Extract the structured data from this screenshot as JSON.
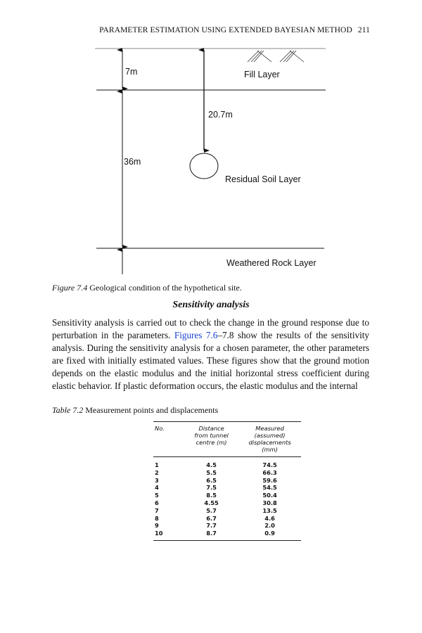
{
  "header": {
    "running_title": "PARAMETER ESTIMATION USING EXTENDED BAYESIAN METHOD",
    "page_number": "211"
  },
  "figure": {
    "labels": {
      "fill_depth": "7m",
      "tunnel_depth": "20.7m",
      "residual_depth": "36m",
      "fill_layer": "Fill Layer",
      "residual_layer": "Residual Soil Layer",
      "rock_layer": "Weathered Rock Layer"
    },
    "caption_label": "Figure 7.4",
    "caption_text": "Geological condition of the hypothetical site."
  },
  "section": {
    "heading": "Sensitivity analysis",
    "para_before_link": "Sensitivity analysis is carried out to check the change in the ground response due to perturbation in the parameters. ",
    "link_text": "Figures 7.6",
    "para_after_link": "–7.8 show the results of the sensitivity analysis. During the sensitivity analysis for a chosen parameter, the other parameters are fixed with initially estimated values. These figures show that the ground motion depends on the elastic modulus and the initial horizontal stress coefficient during elastic behavior. If plastic deformation occurs, the elastic modulus and the internal"
  },
  "table": {
    "caption_label": "Table 7.2",
    "caption_text": "Measurement points and displacements",
    "headers": [
      "No.",
      "Distance from tunnel centre (m)",
      "Measured (assumed) displacements (mm)"
    ],
    "rows": [
      [
        "1",
        "4.5",
        "74.5"
      ],
      [
        "2",
        "5.5",
        "66.3"
      ],
      [
        "3",
        "6.5",
        "59.6"
      ],
      [
        "4",
        "7.5",
        "54.5"
      ],
      [
        "5",
        "8.5",
        "50.4"
      ],
      [
        "6",
        "4.55",
        "30.8"
      ],
      [
        "7",
        "5.7",
        "13.5"
      ],
      [
        "8",
        "6.7",
        "4.6"
      ],
      [
        "9",
        "7.7",
        "2.0"
      ],
      [
        "10",
        "8.7",
        "0.9"
      ]
    ]
  }
}
